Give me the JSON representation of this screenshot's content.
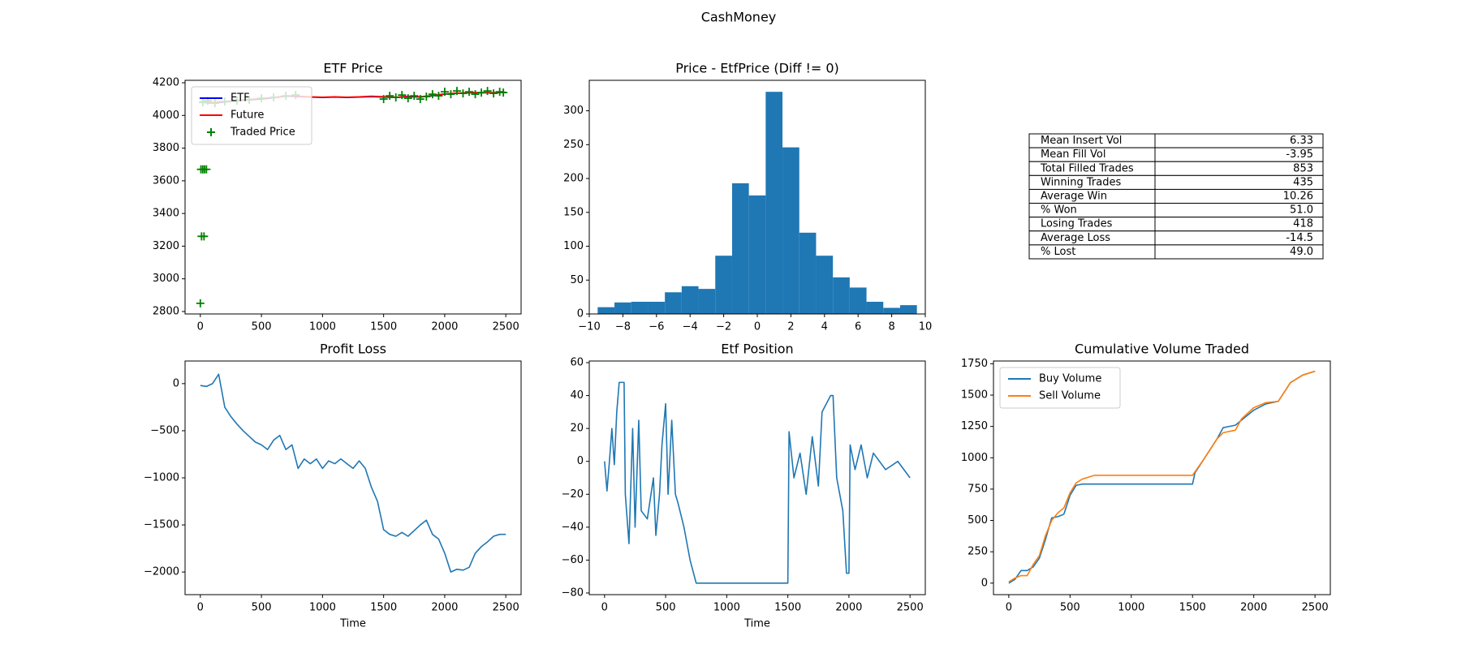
{
  "title": "CashMoney",
  "chart_data": [
    {
      "type": "line",
      "title": "ETF Price",
      "legend": "upper left",
      "xlim": [
        -125,
        2625
      ],
      "xticks": [
        0,
        500,
        1000,
        1500,
        2000,
        2500
      ],
      "ylim": [
        2785,
        4215
      ],
      "yticks": [
        2800,
        3000,
        3200,
        3400,
        3600,
        3800,
        4000,
        4200
      ],
      "series": [
        {
          "name": "ETF",
          "color": "#0000ff",
          "style": "line",
          "x": [
            0,
            100,
            200,
            300,
            400,
            500,
            600,
            700,
            800,
            900,
            1000,
            1100,
            1200,
            1300,
            1400,
            1500,
            1600,
            1700,
            1800,
            1900,
            2000,
            2100,
            2200,
            2300,
            2400,
            2500
          ],
          "values": [
            4080,
            4075,
            4082,
            4090,
            4095,
            4100,
            4108,
            4118,
            4115,
            4112,
            4110,
            4112,
            4110,
            4112,
            4115,
            4112,
            4110,
            4115,
            4112,
            4120,
            4130,
            4135,
            4138,
            4138,
            4138,
            4140
          ]
        },
        {
          "name": "Future",
          "color": "#ff0000",
          "style": "line",
          "x": [
            0,
            100,
            200,
            300,
            400,
            500,
            600,
            700,
            800,
            900,
            1000,
            1100,
            1200,
            1300,
            1400,
            1500,
            1600,
            1700,
            1800,
            1900,
            2000,
            2100,
            2200,
            2300,
            2400,
            2500
          ],
          "values": [
            4085,
            4080,
            4085,
            4092,
            4098,
            4104,
            4110,
            4120,
            4118,
            4114,
            4112,
            4114,
            4112,
            4114,
            4118,
            4115,
            4112,
            4118,
            4115,
            4122,
            4132,
            4137,
            4140,
            4140,
            4140,
            4142
          ]
        },
        {
          "name": "Traded Price",
          "color": "#008000",
          "style": "scatter",
          "x": [
            5,
            20,
            35,
            50,
            10,
            30,
            0,
            20,
            60,
            120,
            200,
            300,
            400,
            500,
            600,
            700,
            780,
            1500,
            1550,
            1600,
            1650,
            1700,
            1750,
            1800,
            1850,
            1900,
            1950,
            2000,
            2050,
            2100,
            2150,
            2200,
            2250,
            2300,
            2350,
            2400,
            2450,
            2480
          ],
          "values": [
            3670,
            3670,
            3670,
            3670,
            3260,
            3260,
            2850,
            4080,
            4090,
            4075,
            4085,
            4090,
            4095,
            4105,
            4110,
            4120,
            4125,
            4100,
            4120,
            4110,
            4125,
            4105,
            4120,
            4100,
            4115,
            4130,
            4120,
            4145,
            4130,
            4150,
            4135,
            4145,
            4130,
            4140,
            4150,
            4135,
            4145,
            4140
          ]
        }
      ]
    },
    {
      "type": "histogram",
      "title": "Price - EtfPrice (Diff != 0)",
      "color": "#1f77b4",
      "xlim": [
        -10,
        10
      ],
      "xticks": [
        {
          "value": -10,
          "label": "−10"
        },
        {
          "value": -8,
          "label": "−8"
        },
        {
          "value": -6,
          "label": "−6"
        },
        {
          "value": -4,
          "label": "−4"
        },
        {
          "value": -2,
          "label": "−2"
        },
        0,
        2,
        4,
        6,
        8,
        10
      ],
      "ylim": [
        0,
        345
      ],
      "yticks": [
        0,
        50,
        100,
        150,
        200,
        250,
        300
      ],
      "bins": [
        -9.5,
        -8.5,
        -7.5,
        -6.5,
        -5.5,
        -4.5,
        -3.5,
        -2.5,
        -1.5,
        -0.5,
        0.5,
        1.5,
        2.5,
        3.5,
        4.5,
        5.5,
        6.5,
        7.5,
        8.5,
        9.5
      ],
      "values": [
        10,
        17,
        18,
        18,
        32,
        41,
        37,
        86,
        193,
        175,
        328,
        246,
        120,
        86,
        54,
        39,
        18,
        9,
        13
      ]
    },
    {
      "type": "table",
      "rows": [
        [
          "Mean Insert Vol",
          "6.33"
        ],
        [
          "Mean Fill Vol",
          "-3.95"
        ],
        [
          "Total Filled Trades",
          "853"
        ],
        [
          "Winning Trades",
          "435"
        ],
        [
          "Average Win",
          "10.26"
        ],
        [
          "% Won",
          "51.0"
        ],
        [
          "Losing Trades",
          "418"
        ],
        [
          "Average Loss",
          "-14.5"
        ],
        [
          "% Lost",
          "49.0"
        ]
      ]
    },
    {
      "type": "line",
      "title": "Profit Loss",
      "xlabel": "Time",
      "xlim": [
        -125,
        2625
      ],
      "xticks": [
        0,
        500,
        1000,
        1500,
        2000,
        2500
      ],
      "ylim": [
        -2240,
        240
      ],
      "yticks": [
        {
          "value": -2000,
          "label": "−2000"
        },
        {
          "value": -1500,
          "label": "−1500"
        },
        {
          "value": -1000,
          "label": "−1000"
        },
        {
          "value": -500,
          "label": "−500"
        },
        0
      ],
      "series": [
        {
          "color": "#1f77b4",
          "style": "line",
          "x": [
            0,
            50,
            100,
            150,
            200,
            250,
            300,
            350,
            400,
            450,
            500,
            550,
            600,
            650,
            700,
            750,
            800,
            850,
            900,
            950,
            1000,
            1050,
            1100,
            1150,
            1200,
            1250,
            1300,
            1350,
            1400,
            1450,
            1500,
            1550,
            1600,
            1650,
            1700,
            1750,
            1800,
            1850,
            1900,
            1950,
            2000,
            2050,
            2100,
            2150,
            2200,
            2250,
            2300,
            2350,
            2400,
            2450,
            2500
          ],
          "values": [
            -20,
            -30,
            0,
            100,
            -250,
            -350,
            -430,
            -500,
            -560,
            -620,
            -650,
            -700,
            -600,
            -550,
            -700,
            -650,
            -900,
            -800,
            -850,
            -800,
            -900,
            -820,
            -850,
            -800,
            -850,
            -900,
            -820,
            -900,
            -1100,
            -1250,
            -1550,
            -1600,
            -1620,
            -1580,
            -1620,
            -1560,
            -1500,
            -1450,
            -1600,
            -1650,
            -1800,
            -2000,
            -1970,
            -1980,
            -1950,
            -1800,
            -1730,
            -1680,
            -1620,
            -1600,
            -1600
          ]
        }
      ]
    },
    {
      "type": "line",
      "title": "Etf Position",
      "xlabel": "Time",
      "xlim": [
        -125,
        2625
      ],
      "xticks": [
        0,
        500,
        1000,
        1500,
        2000,
        2500
      ],
      "ylim": [
        -81,
        61
      ],
      "yticks": [
        {
          "value": -80,
          "label": "−80"
        },
        {
          "value": -60,
          "label": "−60"
        },
        {
          "value": -40,
          "label": "−40"
        },
        {
          "value": -20,
          "label": "−20"
        },
        0,
        20,
        40,
        60
      ],
      "series": [
        {
          "color": "#1f77b4",
          "style": "line",
          "x": [
            0,
            20,
            40,
            60,
            80,
            100,
            120,
            160,
            170,
            200,
            230,
            250,
            280,
            300,
            350,
            400,
            420,
            450,
            470,
            500,
            520,
            550,
            580,
            600,
            650,
            700,
            750,
            1500,
            1510,
            1550,
            1600,
            1650,
            1700,
            1750,
            1780,
            1850,
            1870,
            1900,
            1950,
            1980,
            2000,
            2010,
            2050,
            2100,
            2150,
            2200,
            2300,
            2400,
            2500
          ],
          "values": [
            0,
            -18,
            0,
            20,
            -2,
            30,
            48,
            48,
            -20,
            -50,
            20,
            -40,
            25,
            -30,
            -35,
            -10,
            -45,
            -20,
            10,
            35,
            -20,
            25,
            -20,
            -25,
            -40,
            -60,
            -74,
            -74,
            18,
            -10,
            5,
            -20,
            15,
            -15,
            30,
            40,
            40,
            -10,
            -30,
            -68,
            -68,
            10,
            -5,
            10,
            -10,
            5,
            -5,
            0,
            -10
          ]
        }
      ]
    },
    {
      "type": "line",
      "title": "Cumulative Volume Traded",
      "legend": "upper left",
      "xlim": [
        -125,
        2625
      ],
      "xticks": [
        0,
        500,
        1000,
        1500,
        2000,
        2500
      ],
      "ylim": [
        -92,
        1772
      ],
      "yticks": [
        0,
        250,
        500,
        750,
        1000,
        1250,
        1500,
        1750
      ],
      "series": [
        {
          "name": "Buy Volume",
          "color": "#1f77b4",
          "style": "line",
          "x": [
            0,
            50,
            100,
            150,
            200,
            250,
            300,
            350,
            400,
            450,
            500,
            550,
            600,
            1500,
            1520,
            1600,
            1700,
            1750,
            1800,
            1850,
            1900,
            2000,
            2100,
            2200,
            2300,
            2400,
            2500
          ],
          "values": [
            0,
            30,
            100,
            100,
            130,
            200,
            350,
            520,
            530,
            550,
            700,
            780,
            790,
            790,
            880,
            1000,
            1150,
            1240,
            1250,
            1260,
            1300,
            1380,
            1430,
            1450,
            1600,
            1660,
            1690
          ]
        },
        {
          "name": "Sell Volume",
          "color": "#ff7f0e",
          "style": "line",
          "x": [
            0,
            50,
            100,
            150,
            200,
            250,
            300,
            350,
            400,
            450,
            500,
            550,
            600,
            700,
            1500,
            1600,
            1700,
            1750,
            1800,
            1850,
            1900,
            2000,
            2100,
            2200,
            2300,
            2400,
            2500
          ],
          "values": [
            10,
            40,
            60,
            60,
            150,
            220,
            380,
            500,
            560,
            600,
            720,
            800,
            830,
            860,
            860,
            1000,
            1150,
            1200,
            1210,
            1220,
            1310,
            1400,
            1440,
            1450,
            1600,
            1660,
            1690
          ]
        }
      ]
    }
  ]
}
